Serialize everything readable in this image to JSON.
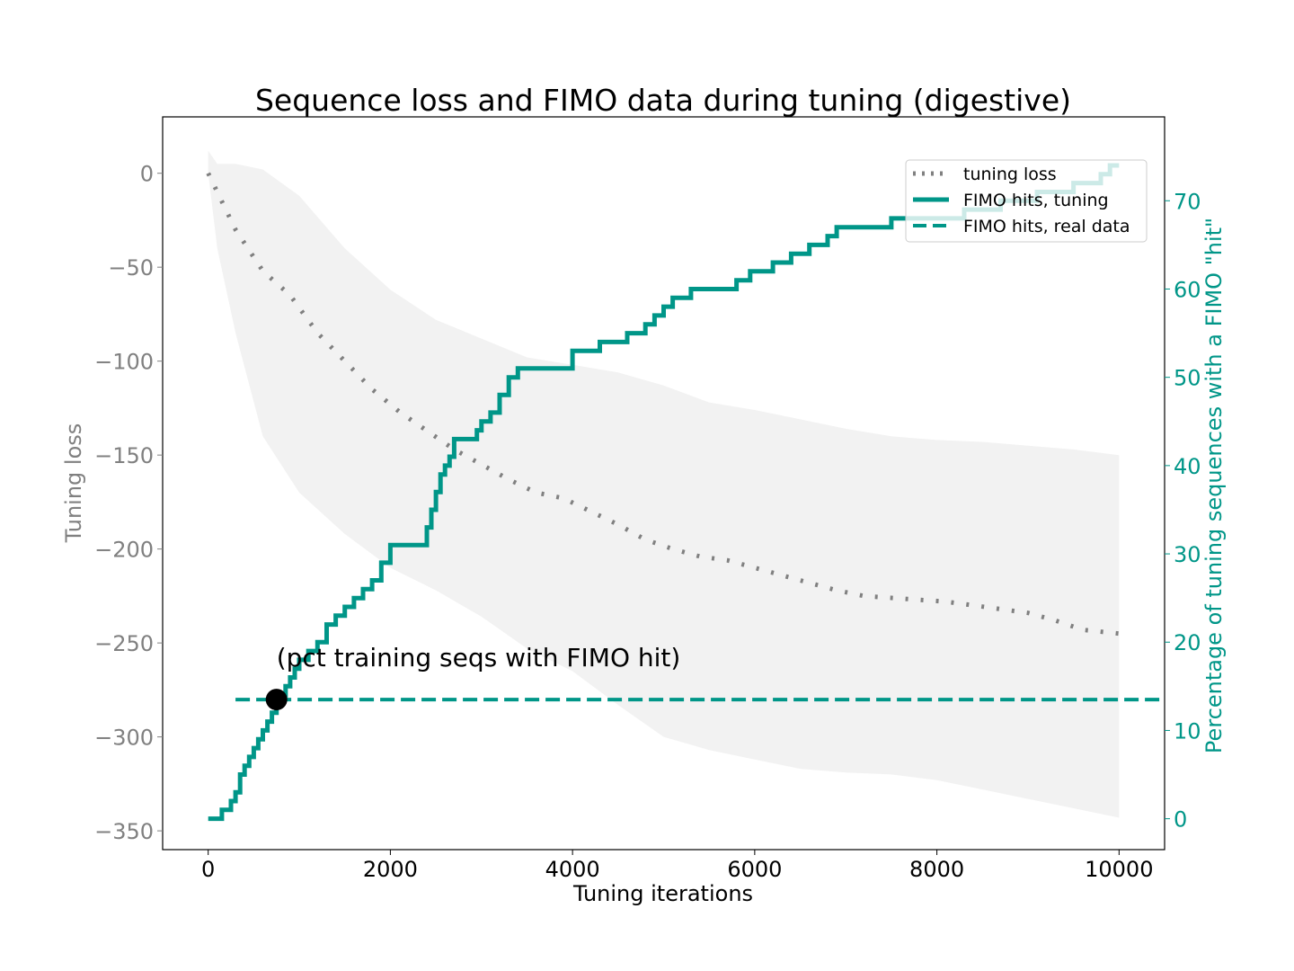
{
  "chart_data": {
    "type": "line",
    "title": "Sequence loss and FIMO data during tuning (digestive)",
    "xlabel": "Tuning iterations",
    "ylabel_left": "Tuning loss",
    "ylabel_right": "Percentage of tuning sequences with a FIMO \"hit\"",
    "xlim": [
      -500,
      10500
    ],
    "ylim_left": [
      -360,
      30
    ],
    "ylim_right": [
      -3.5,
      79.5
    ],
    "x_ticks": [
      0,
      2000,
      4000,
      6000,
      8000,
      10000
    ],
    "x_tick_labels": [
      "0",
      "2000",
      "4000",
      "6000",
      "8000",
      "10000"
    ],
    "y_left_ticks": [
      0,
      -50,
      -100,
      -150,
      -200,
      -250,
      -300,
      -350
    ],
    "y_left_tick_labels": [
      "0",
      "−50",
      "−100",
      "−150",
      "−200",
      "−250",
      "−300",
      "−350"
    ],
    "y_right_ticks": [
      0,
      10,
      20,
      30,
      40,
      50,
      60,
      70
    ],
    "y_right_tick_labels": [
      "0",
      "10",
      "20",
      "30",
      "40",
      "50",
      "60",
      "70"
    ],
    "legend_position": "upper-right",
    "grid": false,
    "colors": {
      "loss": "#808080",
      "band": "#f2f2f2",
      "fimo": "#009688",
      "real": "#009688",
      "marker": "#000000"
    },
    "series": [
      {
        "name": "tuning loss",
        "axis": "left",
        "style": "dotted",
        "x": [
          0,
          300,
          600,
          900,
          1200,
          1500,
          1800,
          2100,
          2400,
          2700,
          3000,
          3300,
          3600,
          3900,
          4200,
          4500,
          4800,
          5100,
          5400,
          5700,
          6000,
          6300,
          6600,
          6900,
          7200,
          7500,
          7800,
          8100,
          8400,
          8700,
          9000,
          9300,
          9600,
          10000
        ],
        "y": [
          0,
          -30,
          -52,
          -65,
          -85,
          -100,
          -115,
          -127,
          -137,
          -147,
          -155,
          -163,
          -170,
          -173,
          -180,
          -187,
          -195,
          -200,
          -204,
          -206,
          -210,
          -214,
          -218,
          -222,
          -225,
          -226,
          -227,
          -228,
          -230,
          -232,
          -234,
          -238,
          -243,
          -245
        ]
      },
      {
        "name": "",
        "axis": "left",
        "style": "band",
        "x": [
          0,
          100,
          300,
          600,
          1000,
          1500,
          2000,
          2500,
          3000,
          3500,
          4000,
          4500,
          5000,
          5500,
          6000,
          6500,
          7000,
          7500,
          8000,
          8500,
          9000,
          9500,
          10000
        ],
        "upper": [
          12,
          5,
          5,
          2,
          -12,
          -40,
          -62,
          -78,
          -88,
          -98,
          -102,
          -106,
          -113,
          -122,
          -126,
          -131,
          -136,
          -140,
          -142,
          -143,
          -145,
          -147,
          -150
        ],
        "lower": [
          0,
          -40,
          -85,
          -140,
          -170,
          -192,
          -210,
          -222,
          -236,
          -253,
          -265,
          -283,
          -300,
          -307,
          -312,
          -317,
          -319,
          -320,
          -323,
          -328,
          -333,
          -338,
          -343
        ]
      },
      {
        "name": "FIMO hits, tuning",
        "axis": "right",
        "style": "step",
        "x": [
          0,
          150,
          250,
          300,
          350,
          400,
          450,
          500,
          550,
          600,
          650,
          700,
          750,
          800,
          850,
          900,
          950,
          1000,
          1100,
          1200,
          1300,
          1400,
          1500,
          1600,
          1700,
          1800,
          1900,
          2000,
          2200,
          2400,
          2450,
          2500,
          2550,
          2600,
          2650,
          2700,
          2800,
          2950,
          3000,
          3100,
          3200,
          3300,
          3400,
          3500,
          4000,
          4300,
          4600,
          4800,
          4900,
          5000,
          5100,
          5200,
          5300,
          5600,
          5800,
          5950,
          6200,
          6400,
          6600,
          6800,
          6900,
          7000,
          7200,
          7300,
          7500,
          7700,
          7900,
          8100,
          8300,
          8500,
          8700,
          8900,
          9100,
          9300,
          9500,
          9700,
          9800,
          9900,
          10000
        ],
        "y": [
          0,
          1,
          2,
          3,
          5,
          6,
          7,
          8,
          9,
          10,
          11,
          12,
          13,
          14,
          15,
          16,
          17,
          18,
          19,
          20,
          22,
          23,
          24,
          25,
          26,
          27,
          29,
          31,
          31,
          33,
          35,
          37,
          39,
          40,
          41,
          43,
          43,
          44,
          45,
          46,
          48,
          50,
          51,
          51,
          53,
          54,
          55,
          56,
          57,
          58,
          59,
          59,
          60,
          60,
          61,
          62,
          63,
          64,
          65,
          66,
          67,
          67,
          67,
          67,
          68,
          68,
          68,
          68,
          69,
          69,
          70,
          70,
          71,
          71,
          72,
          72,
          73,
          74,
          74
        ]
      },
      {
        "name": "FIMO hits, real data",
        "axis": "right",
        "style": "dashed",
        "x": [
          300,
          10500
        ],
        "y": [
          13.5,
          13.5
        ]
      }
    ],
    "annotation": {
      "text": "(pct training seqs with FIMO hit)",
      "x": 750,
      "y": 13.5
    }
  }
}
